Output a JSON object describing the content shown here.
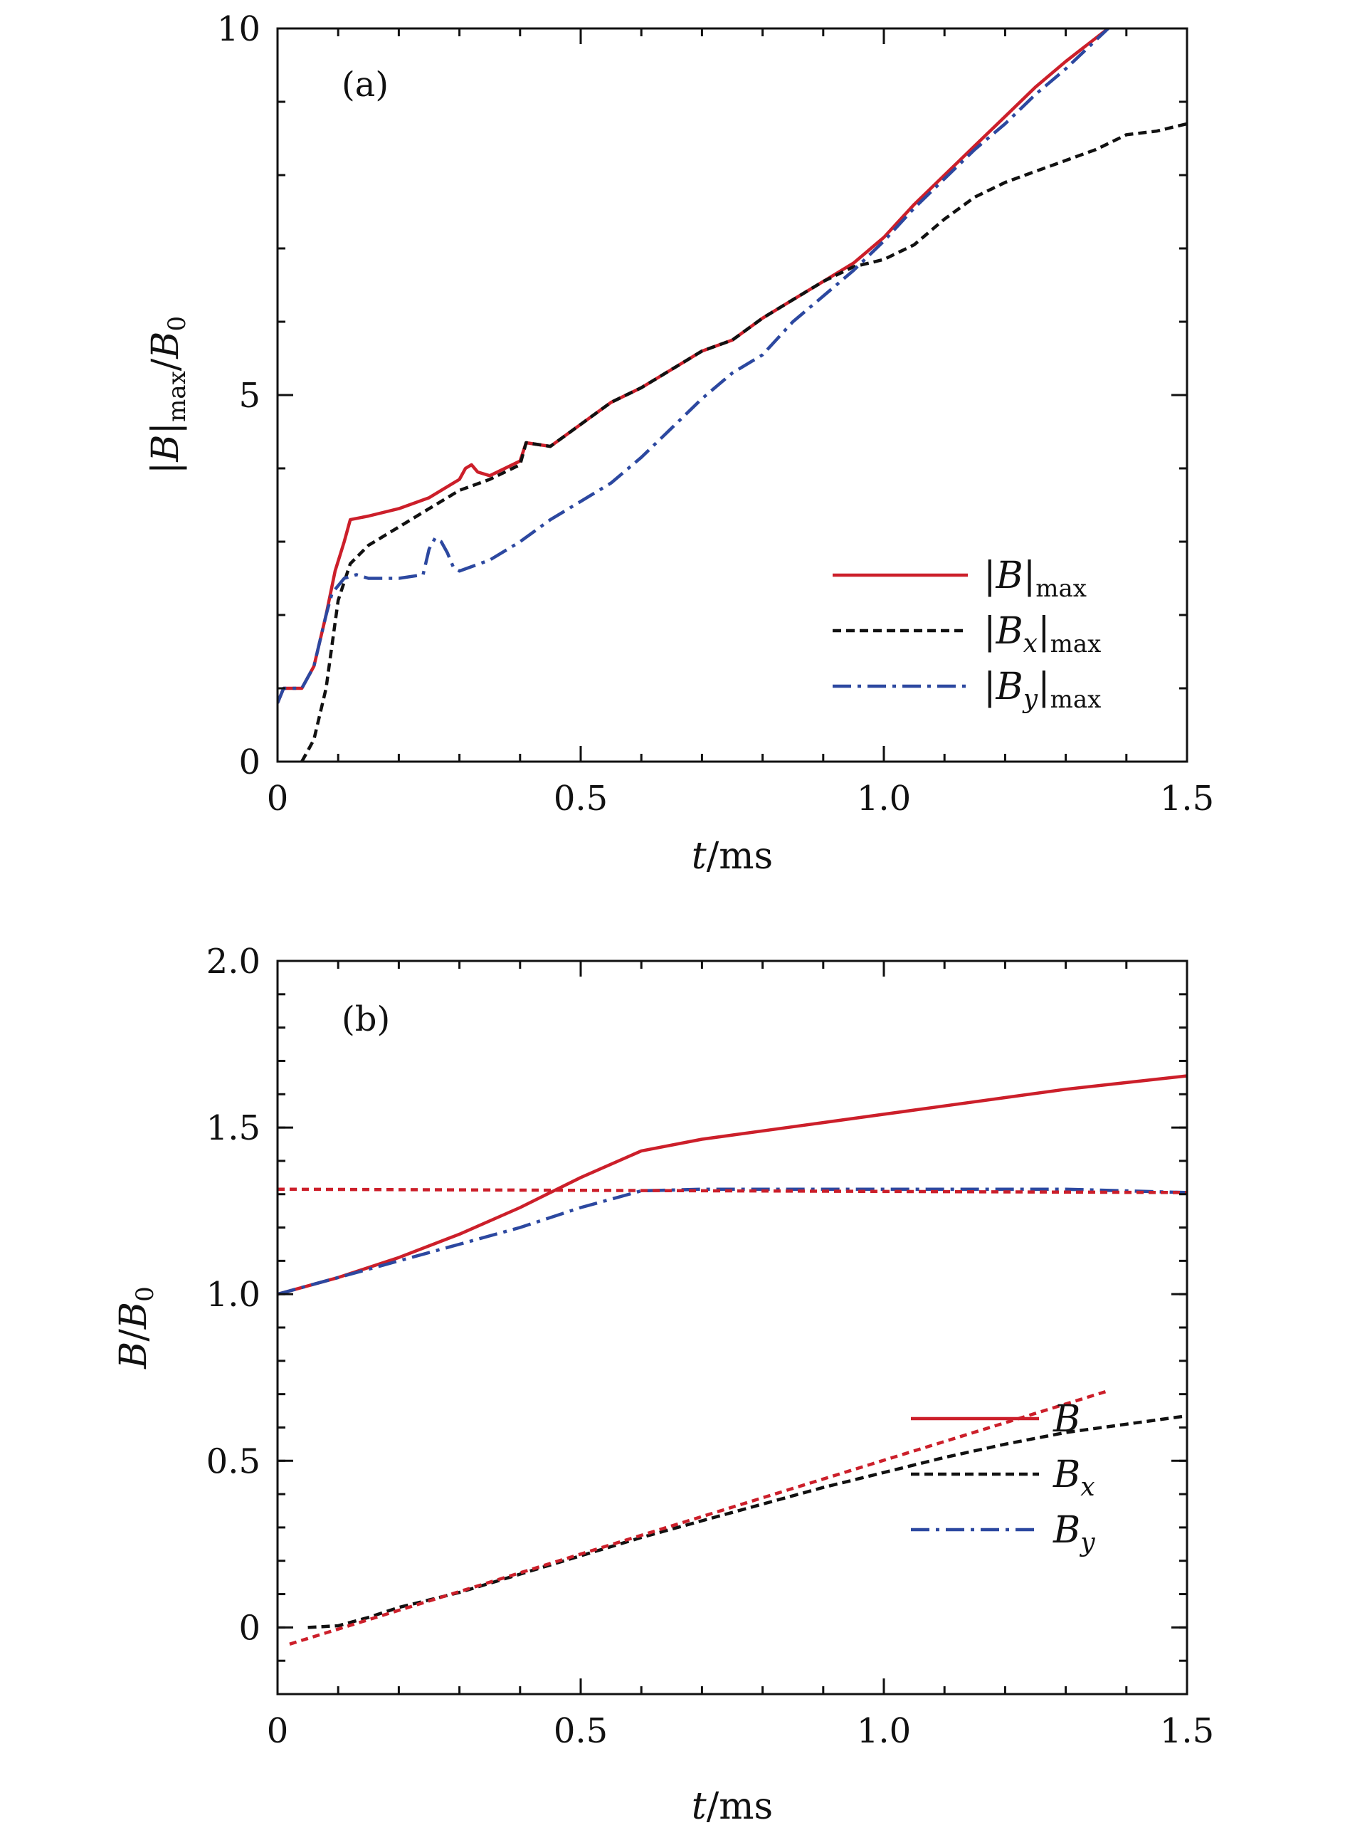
{
  "chart_data": [
    {
      "type": "line",
      "panel_label": "(a)",
      "xlabel": "t/ms",
      "ylabel": "|B|max/B0",
      "xlim": [
        0,
        1.5
      ],
      "ylim": [
        0,
        10
      ],
      "x_ticks": [
        0,
        0.5,
        1.0,
        1.5
      ],
      "x_tick_labels": [
        "0",
        "0.5",
        "1.0",
        "1.5"
      ],
      "y_ticks": [
        0,
        5,
        10
      ],
      "y_tick_labels": [
        "0",
        "5",
        "10"
      ],
      "x_minor_step": 0.1,
      "y_minor_step": 1,
      "legend_position": "lower-right",
      "series": [
        {
          "name": "|B|max",
          "legend_main": "|B|",
          "legend_sub": "max",
          "color": "#cc1f2a",
          "dash": "solid",
          "x": [
            0.0,
            0.01,
            0.04,
            0.06,
            0.08,
            0.095,
            0.11,
            0.12,
            0.15,
            0.2,
            0.25,
            0.3,
            0.31,
            0.32,
            0.33,
            0.35,
            0.4,
            0.41,
            0.45,
            0.5,
            0.55,
            0.6,
            0.65,
            0.7,
            0.75,
            0.8,
            0.85,
            0.9,
            0.95,
            1.0,
            1.05,
            1.1,
            1.15,
            1.2,
            1.25,
            1.3,
            1.37
          ],
          "values": [
            0.8,
            1.0,
            1.0,
            1.3,
            2.0,
            2.6,
            3.0,
            3.3,
            3.35,
            3.45,
            3.6,
            3.85,
            4.0,
            4.05,
            3.95,
            3.9,
            4.1,
            4.35,
            4.3,
            4.6,
            4.9,
            5.1,
            5.35,
            5.6,
            5.75,
            6.05,
            6.3,
            6.55,
            6.8,
            7.15,
            7.6,
            8.0,
            8.4,
            8.8,
            9.2,
            9.55,
            10.0
          ]
        },
        {
          "name": "|Bx|max",
          "legend_main": "|B",
          "legend_italic_sub": "x",
          "legend_tail": "|",
          "legend_sub": "max",
          "color": "#111111",
          "dash": "dashed",
          "x": [
            0.04,
            0.06,
            0.08,
            0.09,
            0.1,
            0.12,
            0.15,
            0.2,
            0.25,
            0.3,
            0.35,
            0.4,
            0.41,
            0.45,
            0.5,
            0.55,
            0.6,
            0.65,
            0.7,
            0.75,
            0.8,
            0.85,
            0.9,
            0.95,
            1.0,
            1.05,
            1.1,
            1.15,
            1.2,
            1.25,
            1.3,
            1.35,
            1.4,
            1.45,
            1.5
          ],
          "values": [
            0.0,
            0.3,
            1.0,
            1.6,
            2.2,
            2.7,
            2.95,
            3.2,
            3.45,
            3.7,
            3.85,
            4.05,
            4.35,
            4.3,
            4.6,
            4.9,
            5.1,
            5.35,
            5.6,
            5.75,
            6.05,
            6.3,
            6.55,
            6.75,
            6.85,
            7.05,
            7.4,
            7.7,
            7.9,
            8.05,
            8.2,
            8.35,
            8.55,
            8.6,
            8.7
          ]
        },
        {
          "name": "|By|max",
          "legend_main": "|B",
          "legend_italic_sub": "y",
          "legend_tail": "|",
          "legend_sub": "max",
          "color": "#2c48a0",
          "dash": "dashdot",
          "x": [
            0.0,
            0.01,
            0.04,
            0.06,
            0.08,
            0.09,
            0.11,
            0.13,
            0.15,
            0.2,
            0.24,
            0.25,
            0.26,
            0.27,
            0.28,
            0.29,
            0.3,
            0.35,
            0.4,
            0.45,
            0.5,
            0.55,
            0.6,
            0.65,
            0.7,
            0.75,
            0.8,
            0.85,
            0.9,
            0.95,
            1.0,
            1.05,
            1.1,
            1.15,
            1.2,
            1.25,
            1.3,
            1.37
          ],
          "values": [
            0.8,
            1.0,
            1.0,
            1.3,
            2.0,
            2.3,
            2.5,
            2.55,
            2.5,
            2.5,
            2.55,
            2.9,
            3.05,
            3.0,
            2.85,
            2.65,
            2.6,
            2.75,
            3.0,
            3.3,
            3.55,
            3.8,
            4.15,
            4.55,
            4.95,
            5.3,
            5.55,
            6.0,
            6.35,
            6.7,
            7.1,
            7.55,
            7.95,
            8.35,
            8.7,
            9.1,
            9.45,
            10.0
          ]
        }
      ]
    },
    {
      "type": "line",
      "panel_label": "(b)",
      "xlabel": "t/ms",
      "ylabel": "B/B0",
      "xlim": [
        0,
        1.5
      ],
      "ylim": [
        -0.2,
        2.0
      ],
      "x_ticks": [
        0,
        0.5,
        1.0,
        1.5
      ],
      "x_tick_labels": [
        "0",
        "0.5",
        "1.0",
        "1.5"
      ],
      "y_ticks": [
        0,
        0.5,
        1.0,
        1.5,
        2.0
      ],
      "y_tick_labels": [
        "0",
        "0.5",
        "1.0",
        "1.5",
        "2.0"
      ],
      "x_minor_step": 0.1,
      "y_minor_step": 0.1,
      "legend_position": "lower-right",
      "series": [
        {
          "name": "B",
          "legend_main": "B",
          "color": "#cc1f2a",
          "dash": "solid",
          "x": [
            0.0,
            0.1,
            0.2,
            0.3,
            0.4,
            0.5,
            0.6,
            0.7,
            0.8,
            0.9,
            1.0,
            1.1,
            1.2,
            1.3,
            1.4,
            1.5
          ],
          "values": [
            1.0,
            1.05,
            1.11,
            1.18,
            1.26,
            1.35,
            1.43,
            1.465,
            1.49,
            1.515,
            1.54,
            1.565,
            1.59,
            1.615,
            1.635,
            1.655
          ]
        },
        {
          "name": "Bx",
          "legend_main": "B",
          "legend_italic_sub": "x",
          "color": "#111111",
          "dash": "dashed",
          "x": [
            0.05,
            0.1,
            0.15,
            0.2,
            0.3,
            0.4,
            0.5,
            0.6,
            0.7,
            0.8,
            0.9,
            1.0,
            1.1,
            1.2,
            1.3,
            1.4,
            1.5
          ],
          "values": [
            0.0,
            0.005,
            0.03,
            0.06,
            0.105,
            0.16,
            0.215,
            0.27,
            0.32,
            0.37,
            0.42,
            0.465,
            0.51,
            0.55,
            0.585,
            0.61,
            0.635
          ]
        },
        {
          "name": "By",
          "legend_main": "B",
          "legend_italic_sub": "y",
          "color": "#2c48a0",
          "dash": "dashdot",
          "x": [
            0.0,
            0.1,
            0.2,
            0.3,
            0.4,
            0.5,
            0.6,
            0.7,
            0.8,
            0.9,
            1.0,
            1.1,
            1.2,
            1.3,
            1.4,
            1.5
          ],
          "values": [
            1.0,
            1.05,
            1.1,
            1.15,
            1.2,
            1.26,
            1.31,
            1.315,
            1.315,
            1.315,
            1.315,
            1.315,
            1.315,
            1.315,
            1.31,
            1.305
          ]
        },
        {
          "name": "fit-constant",
          "legend_main": "",
          "color": "#cc1f2a",
          "dash": "dotted",
          "x": [
            0.0,
            1.5
          ],
          "values": [
            1.315,
            1.305
          ]
        },
        {
          "name": "fit-linear",
          "legend_main": "",
          "color": "#cc1f2a",
          "dash": "dotted",
          "x": [
            0.02,
            1.37
          ],
          "values": [
            -0.05,
            0.71
          ]
        }
      ]
    }
  ]
}
